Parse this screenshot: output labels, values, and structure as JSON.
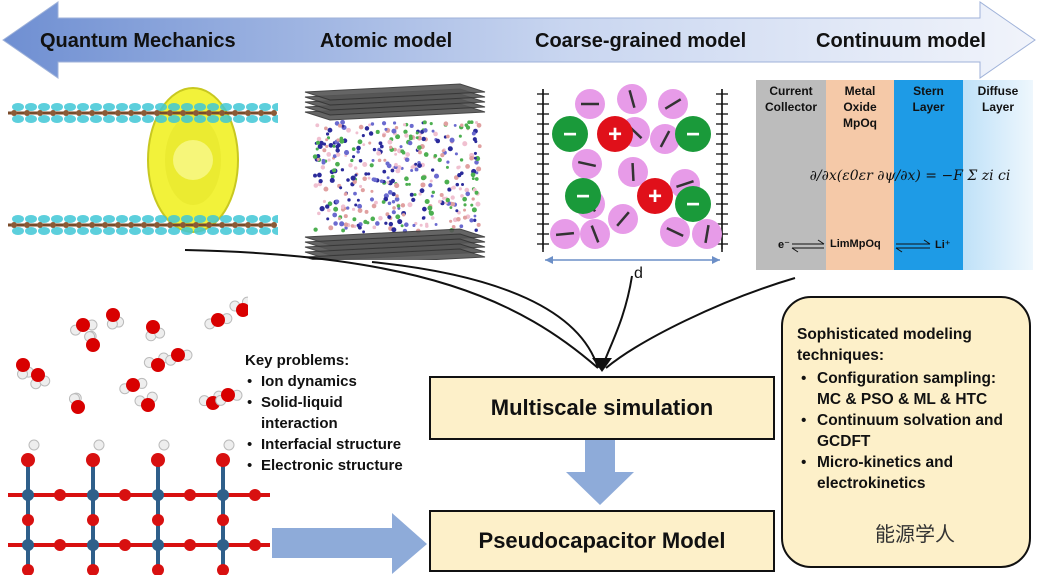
{
  "scales": {
    "quantum": "Quantum Mechanics",
    "atomic": "Atomic model",
    "coarse": "Coarse-grained model",
    "continuum": "Continuum model"
  },
  "continuum_panel": {
    "col1": [
      "Current",
      "Collector"
    ],
    "col2": [
      "Metal",
      "Oxide",
      "MpOq"
    ],
    "col3": [
      "Stern",
      "Layer"
    ],
    "col4": [
      "Diffuse",
      "Layer"
    ],
    "equation": "∂/∂x(ε0εr ∂ψ/∂x) = −F Σ zi ci",
    "electron": "e⁻",
    "species": "LimMpOq",
    "li_ion": "Li⁺",
    "colors": {
      "collector": "#bcbcbc",
      "oxide": "#f5c9a8",
      "stern": "#1e9be6",
      "diffuse": "#cfe9fb"
    }
  },
  "coarse_panel": {
    "d_label": "d"
  },
  "key_problems": {
    "title": "Key problems:",
    "items": [
      "Ion dynamics",
      "Solid-liquid interaction",
      "Interfacial structure",
      "Electronic structure"
    ]
  },
  "boxes": {
    "multiscale": "Multiscale simulation",
    "pseudocap": "Pseudocapacitor Model"
  },
  "techniques": {
    "title": "Sophisticated modeling techniques:",
    "items": [
      "Configuration sampling: MC & PSO & ML & HTC",
      "Continuum solvation and GCDFT",
      "Micro-kinetics and electrokinetics"
    ]
  },
  "watermark": "能源学人",
  "colors": {
    "banner": "#7a9ad6",
    "arrow": "#8eabd9",
    "box_fill": "#fdf0c9",
    "oxygen": "#e00000",
    "metal": "#2f5f8a"
  }
}
